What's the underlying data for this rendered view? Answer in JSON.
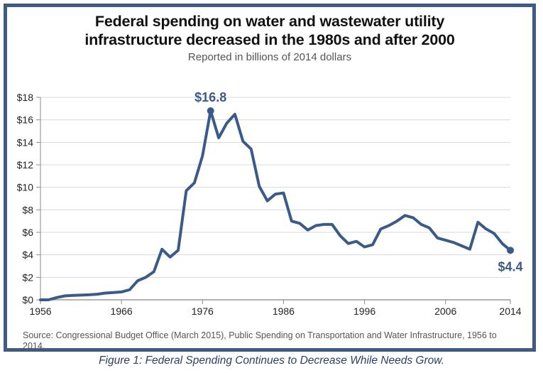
{
  "chart_data": {
    "type": "line",
    "title": "Federal spending on water and wastewater utility infrastructure decreased in the 1980s and after 2000",
    "title_lines": [
      "Federal spending on water and wastewater utility",
      "infrastructure decreased in the 1980s and after 2000"
    ],
    "subtitle": "Reported in billions of 2014 dollars",
    "xlabel": "",
    "ylabel": "",
    "xlim": [
      1956,
      2014
    ],
    "ylim": [
      0,
      18
    ],
    "x_ticks": [
      1956,
      1966,
      1976,
      1986,
      1996,
      2006,
      2014
    ],
    "y_ticks": [
      0,
      2,
      4,
      6,
      8,
      10,
      12,
      14,
      16,
      18
    ],
    "y_tick_labels": [
      "$0",
      "$2",
      "$4",
      "$6",
      "$8",
      "$10",
      "$12",
      "$14",
      "$16",
      "$18"
    ],
    "grid": "horizontal",
    "legend": "none",
    "series": [
      {
        "name": "Federal spending",
        "color": "#3a5a8a",
        "x": [
          1956,
          1957,
          1958,
          1959,
          1960,
          1961,
          1962,
          1963,
          1964,
          1965,
          1966,
          1967,
          1968,
          1969,
          1970,
          1971,
          1972,
          1973,
          1974,
          1975,
          1976,
          1977,
          1978,
          1979,
          1980,
          1981,
          1982,
          1983,
          1984,
          1985,
          1986,
          1987,
          1988,
          1989,
          1990,
          1991,
          1992,
          1993,
          1994,
          1995,
          1996,
          1997,
          1998,
          1999,
          2000,
          2001,
          2002,
          2003,
          2004,
          2005,
          2006,
          2007,
          2008,
          2009,
          2010,
          2011,
          2012,
          2013,
          2014
        ],
        "values": [
          0.0,
          0.0,
          0.2,
          0.35,
          0.4,
          0.42,
          0.45,
          0.5,
          0.6,
          0.65,
          0.7,
          0.9,
          1.7,
          2.0,
          2.5,
          4.5,
          3.8,
          4.4,
          9.7,
          10.4,
          12.8,
          16.8,
          14.4,
          15.7,
          16.5,
          14.1,
          13.4,
          10.1,
          8.8,
          9.4,
          9.5,
          7.0,
          6.8,
          6.2,
          6.6,
          6.7,
          6.7,
          5.7,
          5.0,
          5.2,
          4.7,
          4.9,
          6.3,
          6.6,
          7.0,
          7.5,
          7.3,
          6.7,
          6.4,
          5.5,
          5.3,
          5.1,
          4.8,
          4.5,
          6.9,
          6.3,
          5.9,
          5.0,
          4.4
        ]
      }
    ],
    "annotations": [
      {
        "x": 1977,
        "y": 16.8,
        "text": "$16.8",
        "position": "above"
      },
      {
        "x": 2014,
        "y": 4.4,
        "text": "$4.4",
        "position": "below"
      }
    ],
    "source": "Source: Congressional Budget Office (March 2015), Public Spending on Transportation and Water Infrastructure, 1956 to 2014."
  },
  "caption": "Figure 1: Federal Spending Continues to Decrease While Needs Grow."
}
